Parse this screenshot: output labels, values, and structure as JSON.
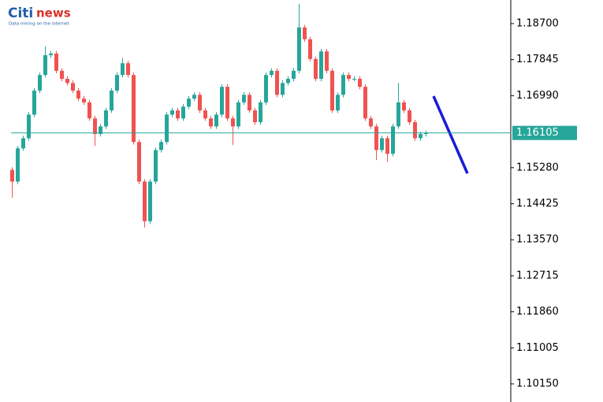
{
  "logo": {
    "brand_left": "Citi",
    "brand_right": "news",
    "tagline": "Data mining on the internet"
  },
  "chart_data": {
    "type": "candlestick",
    "up_color": "#26a69a",
    "down_color": "#ef5350",
    "ylim": [
      1.0972,
      1.1926
    ],
    "yticks": [
      {
        "value": 1.187,
        "label": "1.18700"
      },
      {
        "value": 1.17845,
        "label": "1.17845"
      },
      {
        "value": 1.1699,
        "label": "1.16990"
      },
      {
        "value": 1.1528,
        "label": "1.15280"
      },
      {
        "value": 1.14425,
        "label": "1.14425"
      },
      {
        "value": 1.1357,
        "label": "1.13570"
      },
      {
        "value": 1.12715,
        "label": "1.12715"
      },
      {
        "value": 1.1186,
        "label": "1.11860"
      },
      {
        "value": 1.11005,
        "label": "1.11005"
      },
      {
        "value": 1.1015,
        "label": "1.10150"
      }
    ],
    "open": [
      1.1523,
      1.1495,
      1.1574,
      1.1598,
      1.1654,
      1.1711,
      1.1748,
      1.1795,
      1.1799,
      1.1758,
      1.1739,
      1.1729,
      1.1711,
      1.1692,
      1.1683,
      1.1645,
      1.1608,
      1.1626,
      1.1664,
      1.1711,
      1.1748,
      1.1776,
      1.1748,
      1.1589,
      1.1495,
      1.1401,
      1.1495,
      1.157,
      1.1589,
      1.1654,
      1.1664,
      1.1645,
      1.1673,
      1.1692,
      1.1701,
      1.1664,
      1.1645,
      1.1626,
      1.1654,
      1.172,
      1.1645,
      1.1626,
      1.1683,
      1.1701,
      1.1664,
      1.1636,
      1.1683,
      1.1748,
      1.1758,
      1.1701,
      1.1729,
      1.1739,
      1.1758,
      1.1861,
      1.1833,
      1.1786,
      1.1739,
      1.1804,
      1.1758,
      1.1664,
      1.1701,
      1.1748,
      1.1739,
      1.1739,
      1.172,
      1.1645,
      1.1626,
      1.157,
      1.1598,
      1.1561,
      1.1626,
      1.1683,
      1.1664,
      1.1636,
      1.1598,
      1.1608
    ],
    "high": [
      1.1529,
      1.158,
      1.1604,
      1.166,
      1.1717,
      1.1754,
      1.1816,
      1.1805,
      1.1805,
      1.1764,
      1.1745,
      1.1735,
      1.1717,
      1.1698,
      1.1689,
      1.1651,
      1.1632,
      1.167,
      1.1717,
      1.1754,
      1.1788,
      1.1782,
      1.1754,
      1.1595,
      1.1501,
      1.1501,
      1.1576,
      1.1595,
      1.166,
      1.167,
      1.167,
      1.1679,
      1.1698,
      1.1707,
      1.1707,
      1.167,
      1.1651,
      1.166,
      1.1726,
      1.1726,
      1.1651,
      1.1689,
      1.1707,
      1.1707,
      1.167,
      1.1689,
      1.1754,
      1.1764,
      1.1764,
      1.1735,
      1.1745,
      1.1764,
      1.1917,
      1.1867,
      1.1839,
      1.1792,
      1.181,
      1.181,
      1.1764,
      1.1707,
      1.1754,
      1.1754,
      1.1745,
      1.1745,
      1.1726,
      1.1651,
      1.1632,
      1.1604,
      1.1604,
      1.1632,
      1.1729,
      1.1689,
      1.167,
      1.1642,
      1.1614,
      1.1616
    ],
    "low": [
      1.1457,
      1.1489,
      1.1568,
      1.1592,
      1.1648,
      1.1705,
      1.1742,
      1.1789,
      1.1752,
      1.1733,
      1.1723,
      1.1705,
      1.1686,
      1.1677,
      1.1639,
      1.158,
      1.1602,
      1.162,
      1.1658,
      1.1705,
      1.1742,
      1.1742,
      1.1583,
      1.1489,
      1.1386,
      1.1395,
      1.1489,
      1.1564,
      1.1583,
      1.1648,
      1.1639,
      1.1639,
      1.1667,
      1.1686,
      1.1658,
      1.1639,
      1.162,
      1.162,
      1.1648,
      1.1639,
      1.1582,
      1.162,
      1.1677,
      1.1658,
      1.163,
      1.163,
      1.1677,
      1.1742,
      1.1695,
      1.1695,
      1.1723,
      1.1733,
      1.1752,
      1.1827,
      1.178,
      1.1733,
      1.1733,
      1.1752,
      1.1658,
      1.1658,
      1.1695,
      1.1733,
      1.1733,
      1.1714,
      1.1639,
      1.162,
      1.1546,
      1.1564,
      1.1542,
      1.1555,
      1.162,
      1.1658,
      1.163,
      1.1592,
      1.1592,
      1.1602
    ],
    "close": [
      1.1495,
      1.1574,
      1.1598,
      1.1654,
      1.1711,
      1.1748,
      1.1795,
      1.1799,
      1.1758,
      1.1739,
      1.1729,
      1.1711,
      1.1692,
      1.1683,
      1.1645,
      1.1608,
      1.1626,
      1.1664,
      1.1711,
      1.1748,
      1.1776,
      1.1748,
      1.1589,
      1.1495,
      1.1401,
      1.1495,
      1.157,
      1.1589,
      1.1654,
      1.1664,
      1.1645,
      1.1673,
      1.1692,
      1.1701,
      1.1664,
      1.1645,
      1.1626,
      1.1654,
      1.172,
      1.1645,
      1.1626,
      1.1683,
      1.1701,
      1.1664,
      1.1636,
      1.1683,
      1.1748,
      1.1758,
      1.1701,
      1.1729,
      1.1739,
      1.1758,
      1.1861,
      1.1833,
      1.1786,
      1.1739,
      1.1804,
      1.1758,
      1.1664,
      1.1701,
      1.1748,
      1.1739,
      1.1739,
      1.172,
      1.1645,
      1.1626,
      1.157,
      1.1598,
      1.1561,
      1.1626,
      1.1683,
      1.1664,
      1.1636,
      1.1598,
      1.1608,
      1.16105
    ]
  }
}
